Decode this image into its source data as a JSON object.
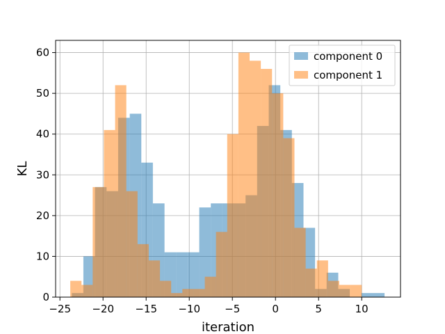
{
  "chart_data": {
    "type": "histogram",
    "xlabel": "iteration",
    "ylabel": "KL",
    "xlim": [
      -25.5,
      14.5
    ],
    "ylim": [
      0,
      63
    ],
    "xticks": [
      -25,
      -20,
      -15,
      -10,
      -5,
      0,
      5,
      10
    ],
    "yticks": [
      0,
      10,
      20,
      30,
      40,
      50,
      60
    ],
    "grid": true,
    "legend_position": "top-right",
    "series": [
      {
        "name": "component 0",
        "color": "#1f77b4",
        "alpha": 0.5,
        "bins": [
          [
            -23.62,
            -22.28,
            1
          ],
          [
            -22.28,
            -20.93,
            10
          ],
          [
            -20.93,
            -19.59,
            27
          ],
          [
            -19.59,
            -18.25,
            26
          ],
          [
            -18.25,
            -16.9,
            44
          ],
          [
            -16.9,
            -15.56,
            45
          ],
          [
            -15.56,
            -14.22,
            33
          ],
          [
            -14.22,
            -12.87,
            23
          ],
          [
            -12.87,
            -11.53,
            11
          ],
          [
            -11.53,
            -10.19,
            11
          ],
          [
            -10.19,
            -8.84,
            11
          ],
          [
            -8.84,
            -7.5,
            22
          ],
          [
            -7.5,
            -6.16,
            23
          ],
          [
            -6.16,
            -4.81,
            23
          ],
          [
            -4.81,
            -3.47,
            23
          ],
          [
            -3.47,
            -2.13,
            25
          ],
          [
            -2.13,
            -0.78,
            42
          ],
          [
            -0.78,
            0.56,
            52
          ],
          [
            0.56,
            1.9,
            41
          ],
          [
            1.9,
            3.25,
            28
          ],
          [
            3.25,
            4.59,
            17
          ],
          [
            4.59,
            5.93,
            2
          ],
          [
            5.93,
            7.28,
            6
          ],
          [
            7.28,
            8.62,
            2
          ],
          [
            8.62,
            9.96,
            0
          ],
          [
            9.96,
            11.31,
            1
          ],
          [
            11.31,
            12.65,
            1
          ]
        ]
      },
      {
        "name": "component 1",
        "color": "#ff7f0e",
        "alpha": 0.5,
        "bins": [
          [
            -23.8,
            -22.5,
            4
          ],
          [
            -22.5,
            -21.2,
            3
          ],
          [
            -21.2,
            -19.9,
            27
          ],
          [
            -19.9,
            -18.6,
            41
          ],
          [
            -18.6,
            -17.3,
            52
          ],
          [
            -17.3,
            -16.0,
            26
          ],
          [
            -16.0,
            -14.7,
            13
          ],
          [
            -14.7,
            -13.4,
            9
          ],
          [
            -13.4,
            -12.1,
            4
          ],
          [
            -12.1,
            -10.8,
            1
          ],
          [
            -10.8,
            -9.5,
            2
          ],
          [
            -9.5,
            -8.2,
            2
          ],
          [
            -8.2,
            -6.9,
            5
          ],
          [
            -6.9,
            -5.6,
            16
          ],
          [
            -5.6,
            -4.3,
            40
          ],
          [
            -4.3,
            -3.0,
            60
          ],
          [
            -3.0,
            -1.7,
            58
          ],
          [
            -1.7,
            -0.4,
            56
          ],
          [
            -0.4,
            0.9,
            50
          ],
          [
            0.9,
            2.2,
            39
          ],
          [
            2.2,
            3.5,
            17
          ],
          [
            3.5,
            4.8,
            7
          ],
          [
            4.8,
            6.1,
            9
          ],
          [
            6.1,
            7.4,
            4
          ],
          [
            7.4,
            8.7,
            3
          ],
          [
            8.7,
            10.0,
            3
          ]
        ]
      }
    ]
  }
}
